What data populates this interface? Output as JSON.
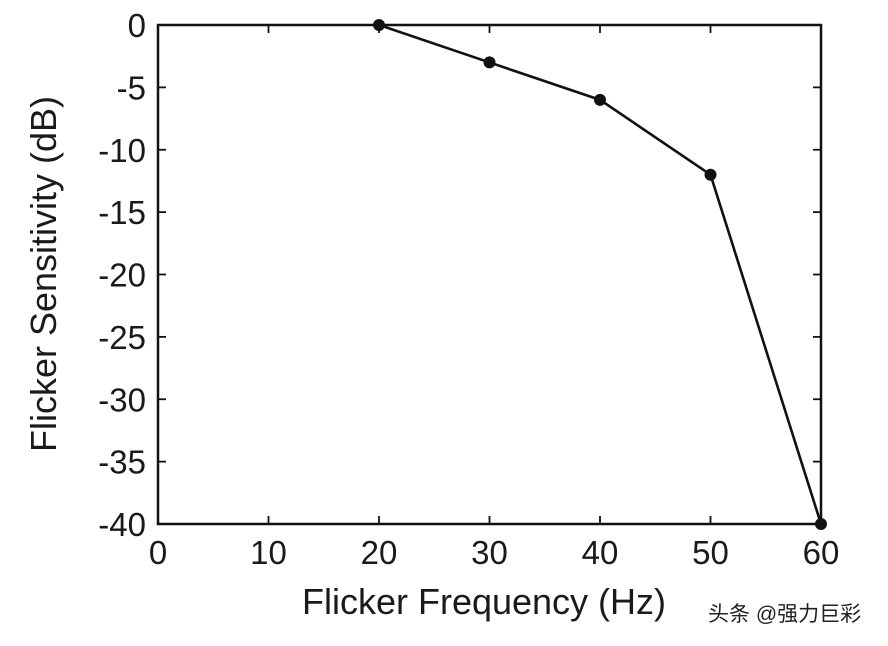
{
  "chart_data": {
    "type": "line",
    "title": "",
    "xlabel": "Flicker Frequency (Hz)",
    "ylabel": "Flicker Sensitivity (dB)",
    "xlim": [
      0,
      60
    ],
    "ylim": [
      -40,
      0
    ],
    "xticks": [
      0,
      10,
      20,
      30,
      40,
      50,
      60
    ],
    "xtick_labels": [
      "0",
      "10",
      "20",
      "30",
      "40",
      "50",
      "60"
    ],
    "yticks": [
      0,
      -5,
      -10,
      -15,
      -20,
      -25,
      -30,
      -35,
      -40
    ],
    "ytick_labels": [
      "0",
      "-5",
      "-10",
      "-15",
      "-20",
      "-25",
      "-30",
      "-35",
      "-40"
    ],
    "grid": false,
    "legend": "none",
    "series": [
      {
        "x": [
          20,
          30,
          40,
          50,
          60
        ],
        "y": [
          0,
          -3,
          -6,
          -12,
          -40
        ],
        "color": "#111111",
        "marker": "circle"
      }
    ]
  },
  "watermark": "头条 @强力巨彩"
}
